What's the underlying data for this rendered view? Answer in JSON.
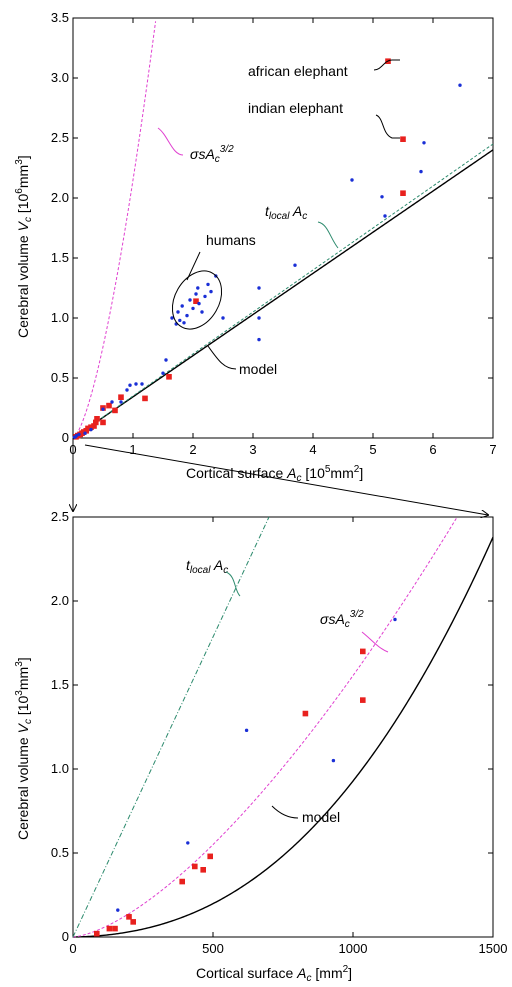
{
  "chart_data": [
    {
      "type": "scatter",
      "xlabel": "Cortical surface A_c [10^5 mm^2]",
      "ylabel": "Cerebral volume V_c [10^6 mm^3]",
      "xlim": [
        0,
        7
      ],
      "ylim": [
        0,
        3.5
      ],
      "xticks": [
        0,
        1,
        2,
        3,
        4,
        5,
        6,
        7
      ],
      "yticks": [
        0,
        0.5,
        1.0,
        1.5,
        2.0,
        2.5,
        3.0,
        3.5
      ],
      "xtick_labels": [
        "0",
        "1",
        "2",
        "3",
        "4",
        "5",
        "6",
        "7"
      ],
      "ytick_labels": [
        "0",
        "0.5",
        "1.0",
        "1.5",
        "2.0",
        "2.5",
        "3.0",
        "3.5"
      ],
      "grid": false,
      "series": [
        {
          "marker": "square",
          "color": "#e8211e",
          "points": [
            [
              0.05,
              0.01
            ],
            [
              0.08,
              0.02
            ],
            [
              0.12,
              0.03
            ],
            [
              0.15,
              0.04
            ],
            [
              0.18,
              0.05
            ],
            [
              0.22,
              0.06
            ],
            [
              0.25,
              0.08
            ],
            [
              0.3,
              0.09
            ],
            [
              0.35,
              0.1
            ],
            [
              0.38,
              0.13
            ],
            [
              0.4,
              0.16
            ],
            [
              0.5,
              0.13
            ],
            [
              0.5,
              0.25
            ],
            [
              0.6,
              0.27
            ],
            [
              0.7,
              0.23
            ],
            [
              0.8,
              0.34
            ],
            [
              1.2,
              0.33
            ],
            [
              1.6,
              0.51
            ],
            [
              2.05,
              1.14
            ],
            [
              5.25,
              3.14
            ],
            [
              5.5,
              2.49
            ],
            [
              5.5,
              2.04
            ]
          ]
        },
        {
          "marker": "dot",
          "color": "#1a2fd6",
          "points": [
            [
              0.02,
              0.005
            ],
            [
              0.04,
              0.01
            ],
            [
              0.06,
              0.02
            ],
            [
              0.1,
              0.03
            ],
            [
              0.2,
              0.04
            ],
            [
              0.3,
              0.07
            ],
            [
              0.5,
              0.24
            ],
            [
              0.65,
              0.3
            ],
            [
              0.8,
              0.3
            ],
            [
              0.9,
              0.4
            ],
            [
              0.95,
              0.44
            ],
            [
              1.05,
              0.45
            ],
            [
              1.15,
              0.45
            ],
            [
              1.5,
              0.54
            ],
            [
              1.55,
              0.65
            ],
            [
              1.65,
              1.0
            ],
            [
              1.72,
              0.95
            ],
            [
              1.75,
              1.05
            ],
            [
              1.78,
              0.98
            ],
            [
              1.82,
              1.1
            ],
            [
              1.85,
              0.96
            ],
            [
              1.9,
              1.02
            ],
            [
              1.95,
              1.15
            ],
            [
              2.0,
              1.08
            ],
            [
              2.05,
              1.2
            ],
            [
              2.08,
              1.25
            ],
            [
              2.1,
              1.12
            ],
            [
              2.15,
              1.05
            ],
            [
              2.2,
              1.18
            ],
            [
              2.25,
              1.28
            ],
            [
              2.3,
              1.22
            ],
            [
              2.38,
              1.35
            ],
            [
              2.5,
              1.0
            ],
            [
              3.1,
              1.0
            ],
            [
              3.1,
              0.82
            ],
            [
              3.1,
              1.25
            ],
            [
              3.7,
              1.44
            ],
            [
              4.65,
              2.15
            ],
            [
              5.15,
              2.01
            ],
            [
              5.2,
              1.85
            ],
            [
              5.8,
              2.22
            ],
            [
              5.85,
              2.46
            ],
            [
              6.45,
              2.94
            ]
          ]
        }
      ],
      "curves": [
        {
          "name": "model",
          "style": "solid",
          "color": "#000000",
          "formula": "model"
        },
        {
          "name": "t_local A_c",
          "style": "dashed",
          "color": "#2e8b6e",
          "formula": "linear",
          "slope": 0.35
        },
        {
          "name": "σ s A_c^{3/2}",
          "style": "dashed",
          "color": "#e040d0",
          "formula": "power",
          "coef": 2.15,
          "exp": 1.5
        }
      ],
      "annotations": {
        "african_elephant": "african elephant",
        "indian_elephant": "indian elephant",
        "humans": "humans",
        "model": "model",
        "tlocal": "t_local A_c",
        "sigma": "σ s A_c^{3/2}"
      }
    },
    {
      "type": "scatter",
      "xlabel": "Cortical surface A_c [mm^2]",
      "ylabel": "Cerebral volume V_c [10^3 mm^3]",
      "xlim": [
        0,
        1500
      ],
      "ylim": [
        0,
        2.5
      ],
      "xticks": [
        0,
        500,
        1000,
        1500
      ],
      "yticks": [
        0,
        0.5,
        1.0,
        1.5,
        2.0,
        2.5
      ],
      "xtick_labels": [
        "0",
        "500",
        "1000",
        "1500"
      ],
      "ytick_labels": [
        "0",
        "0.5",
        "1.0",
        "1.5",
        "2.0",
        "2.5"
      ],
      "grid": false,
      "series": [
        {
          "marker": "square",
          "color": "#e8211e",
          "points": [
            [
              85,
              0.02
            ],
            [
              130,
              0.05
            ],
            [
              150,
              0.05
            ],
            [
              200,
              0.12
            ],
            [
              215,
              0.09
            ],
            [
              390,
              0.33
            ],
            [
              435,
              0.42
            ],
            [
              465,
              0.4
            ],
            [
              490,
              0.48
            ],
            [
              830,
              1.33
            ],
            [
              1035,
              1.7
            ],
            [
              1035,
              1.41
            ]
          ]
        },
        {
          "marker": "dot",
          "color": "#1a2fd6",
          "points": [
            [
              160,
              0.16
            ],
            [
              410,
              0.56
            ],
            [
              620,
              1.23
            ],
            [
              930,
              1.05
            ],
            [
              1150,
              1.89
            ]
          ]
        }
      ],
      "curves": [
        {
          "name": "model",
          "style": "solid",
          "color": "#000000",
          "formula": "model"
        },
        {
          "name": "σ s A_c^{3/2}",
          "style": "dashed",
          "color": "#e040d0",
          "formula": "power"
        },
        {
          "name": "t_local A_c",
          "style": "dashdot",
          "color": "#2e8b6e",
          "formula": "linear"
        }
      ],
      "annotations": {
        "model": "model",
        "tlocal": "t_local A_c",
        "sigma": "σ s A_c^{3/2}"
      }
    }
  ]
}
